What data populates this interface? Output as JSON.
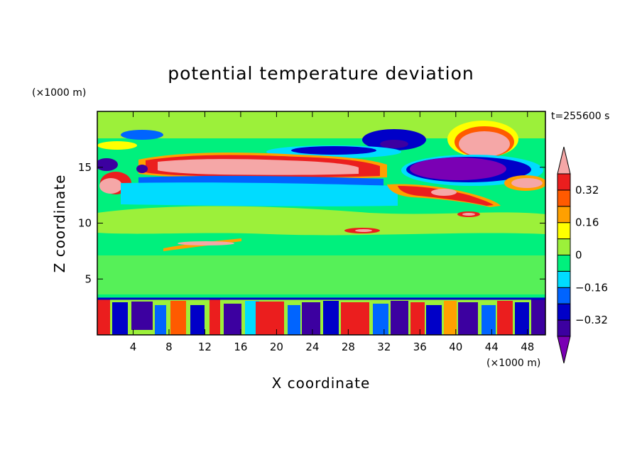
{
  "chart_data": {
    "type": "heatmap",
    "title": "potential temperature deviation",
    "xlabel": "X coordinate",
    "ylabel": "Z coordinate",
    "x_unit": "(×1000 m)",
    "y_unit": "(×1000 m)",
    "time_label": "t=255600 s",
    "xlim": [
      0,
      50
    ],
    "ylim": [
      0,
      20
    ],
    "x_ticks": [
      4,
      8,
      12,
      16,
      20,
      24,
      28,
      32,
      36,
      40,
      44,
      48
    ],
    "y_ticks": [
      5,
      10,
      15
    ],
    "colorbar": {
      "levels": [
        -0.4,
        -0.32,
        -0.24,
        -0.16,
        -0.08,
        0,
        0.08,
        0.16,
        0.24,
        0.32,
        0.4
      ],
      "tick_values": [
        0.32,
        0.16,
        0,
        -0.16,
        -0.32
      ],
      "tick_labels": [
        "0.32",
        "0.16",
        "0",
        "−0.16",
        "−0.32"
      ],
      "colors": [
        "#7a00b4",
        "#3c00a0",
        "#0000c8",
        "#0064ff",
        "#00dcff",
        "#00f07d",
        "#9cf03a",
        "#ffff00",
        "#ffa000",
        "#ff5a00",
        "#eb1e1e",
        "#f5a7a7"
      ],
      "extend": "both"
    },
    "grid": false
  }
}
